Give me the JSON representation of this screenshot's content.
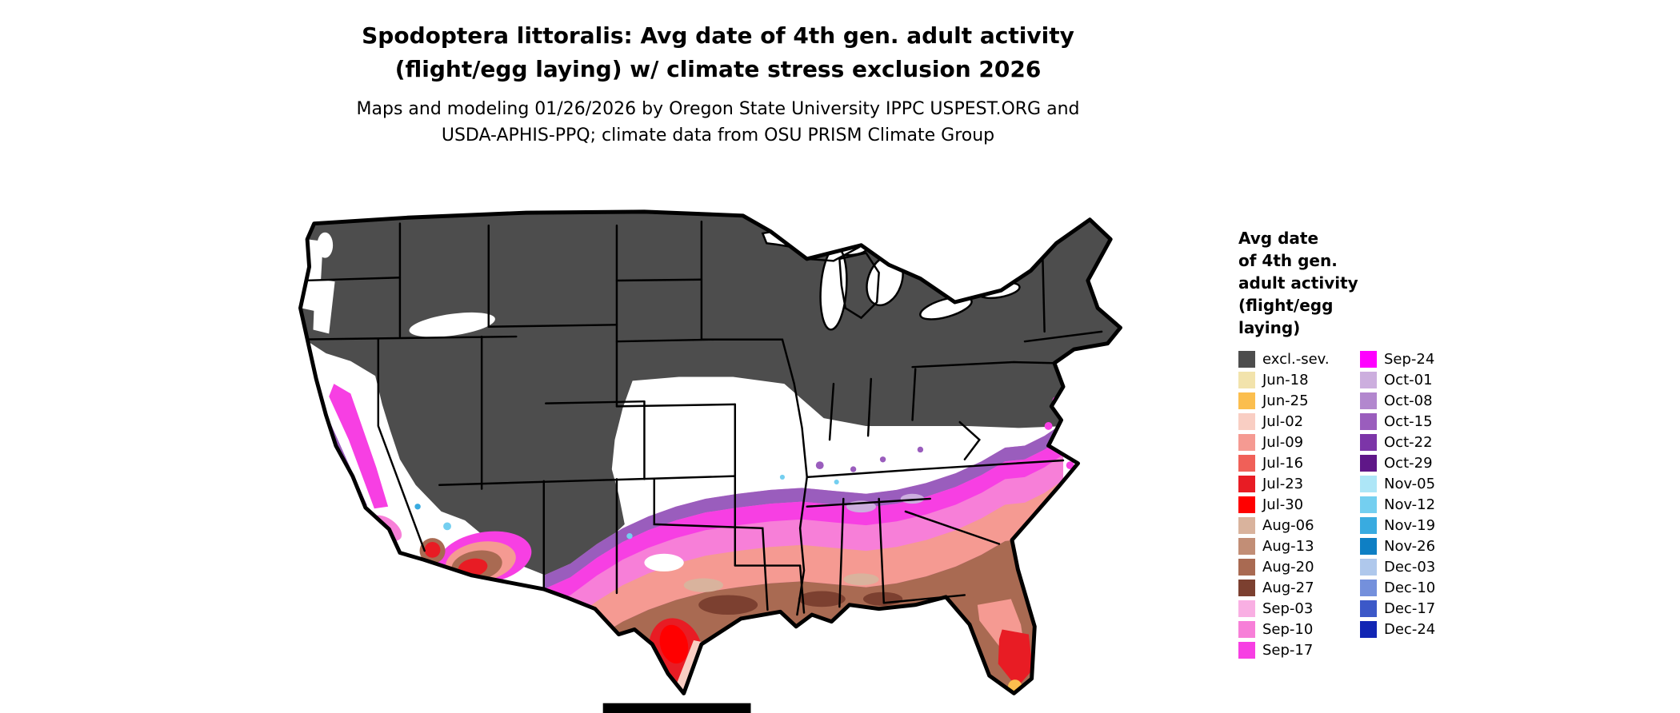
{
  "title": {
    "line1": "Spodoptera littoralis: Avg date of 4th gen. adult activity",
    "line2": "(flight/egg laying) w/ climate stress exclusion 2026"
  },
  "subtitle": {
    "line1": "Maps and modeling 01/26/2026 by Oregon State University IPPC USPEST.ORG and",
    "line2": "USDA-APHIS-PPQ; climate data from OSU PRISM Climate Group"
  },
  "map": {
    "region": "Continental United States",
    "background_color": "#FFFFFF",
    "outline_color": "#000000",
    "excluded_fill": "#4D4D4D"
  },
  "legend": {
    "title_lines": [
      "Avg date",
      "of 4th gen.",
      "adult activity",
      "(flight/egg",
      "laying)"
    ],
    "column1": [
      {
        "label": "excl.-sev.",
        "color": "#4D4D4D"
      },
      {
        "label": "Jun-18",
        "color": "#F2E3AC"
      },
      {
        "label": "Jun-25",
        "color": "#FBBE4E"
      },
      {
        "label": "Jul-02",
        "color": "#F9CEC3"
      },
      {
        "label": "Jul-09",
        "color": "#F59A92"
      },
      {
        "label": "Jul-16",
        "color": "#F06058"
      },
      {
        "label": "Jul-23",
        "color": "#E81C24"
      },
      {
        "label": "Jul-30",
        "color": "#FF0000"
      },
      {
        "label": "Aug-06",
        "color": "#D9B39D"
      },
      {
        "label": "Aug-13",
        "color": "#C28E76"
      },
      {
        "label": "Aug-20",
        "color": "#A96A52"
      },
      {
        "label": "Aug-27",
        "color": "#7C4030"
      },
      {
        "label": "Sep-03",
        "color": "#F9AFE3"
      },
      {
        "label": "Sep-10",
        "color": "#F77FD8"
      },
      {
        "label": "Sep-17",
        "color": "#F73FE3"
      }
    ],
    "column2": [
      {
        "label": "Sep-24",
        "color": "#FF00FF"
      },
      {
        "label": "Oct-01",
        "color": "#CCAEDE"
      },
      {
        "label": "Oct-08",
        "color": "#B287CE"
      },
      {
        "label": "Oct-15",
        "color": "#9A5DBD"
      },
      {
        "label": "Oct-22",
        "color": "#7C35A8"
      },
      {
        "label": "Oct-29",
        "color": "#5F1788"
      },
      {
        "label": "Nov-05",
        "color": "#ADE6F7"
      },
      {
        "label": "Nov-12",
        "color": "#74CFF0"
      },
      {
        "label": "Nov-19",
        "color": "#39ABE0"
      },
      {
        "label": "Nov-26",
        "color": "#0E7FC4"
      },
      {
        "label": "Dec-03",
        "color": "#AFC8EC"
      },
      {
        "label": "Dec-10",
        "color": "#7490DC"
      },
      {
        "label": "Dec-17",
        "color": "#3C58C8"
      },
      {
        "label": "Dec-24",
        "color": "#1226B4"
      }
    ]
  }
}
